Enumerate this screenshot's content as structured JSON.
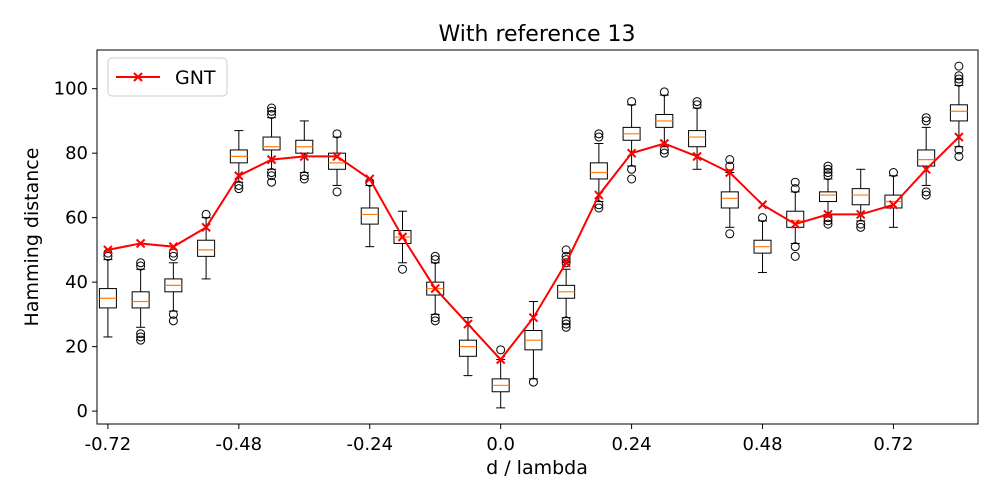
{
  "chart_data": {
    "type": "box",
    "title": "With reference 13",
    "xlabel": "d / lambda",
    "ylabel": "Hamming distance",
    "xlim": [
      -0.74,
      0.875
    ],
    "ylim": [
      -4,
      112
    ],
    "xticks": [
      -0.72,
      -0.48,
      -0.24,
      0.0,
      0.24,
      0.48,
      0.72
    ],
    "xtick_labels": [
      "-0.72",
      "-0.48",
      "-0.24",
      "0.0",
      "0.24",
      "0.48",
      "0.72"
    ],
    "yticks": [
      0,
      20,
      40,
      60,
      80,
      100
    ],
    "ytick_labels": [
      "0",
      "20",
      "40",
      "60",
      "80",
      "100"
    ],
    "legend_position": "top-left",
    "colors": {
      "gnt_line": "#ff0000",
      "median": "#ff7f0e",
      "box": "#000000"
    },
    "series": [
      {
        "name": "GNT",
        "x": [
          -0.72,
          -0.66,
          -0.6,
          -0.54,
          -0.48,
          -0.42,
          -0.36,
          -0.3,
          -0.24,
          -0.18,
          -0.12,
          -0.06,
          0.0,
          0.06,
          0.12,
          0.18,
          0.24,
          0.3,
          0.36,
          0.42,
          0.48,
          0.54,
          0.6,
          0.66,
          0.72,
          0.78,
          0.84
        ],
        "values": [
          50,
          52,
          51,
          57,
          73,
          78,
          79,
          79,
          72,
          54,
          38,
          27,
          16,
          29,
          46,
          67,
          80,
          83,
          79,
          74,
          64,
          58,
          61,
          61,
          64,
          75,
          85
        ]
      }
    ],
    "boxes": [
      {
        "x": -0.72,
        "min": 23,
        "q1": 32,
        "median": 35,
        "q3": 38,
        "max": 47,
        "outliers": [
          48,
          49
        ]
      },
      {
        "x": -0.66,
        "min": 26,
        "q1": 32,
        "median": 34,
        "q3": 37,
        "max": 44,
        "outliers": [
          22,
          23,
          24,
          45,
          46
        ]
      },
      {
        "x": -0.6,
        "min": 31,
        "q1": 37,
        "median": 39,
        "q3": 41,
        "max": 46,
        "outliers": [
          28,
          30,
          48,
          49
        ]
      },
      {
        "x": -0.54,
        "min": 41,
        "q1": 48,
        "median": 50,
        "q3": 53,
        "max": 60,
        "outliers": [
          61
        ]
      },
      {
        "x": -0.48,
        "min": 71,
        "q1": 77,
        "median": 79,
        "q3": 81,
        "max": 87,
        "outliers": [
          69,
          70
        ]
      },
      {
        "x": -0.42,
        "min": 75,
        "q1": 81,
        "median": 82,
        "q3": 85,
        "max": 91,
        "outliers": [
          71,
          73,
          74,
          92,
          93,
          94
        ]
      },
      {
        "x": -0.36,
        "min": 74,
        "q1": 80,
        "median": 82,
        "q3": 84,
        "max": 90,
        "outliers": [
          72,
          73
        ]
      },
      {
        "x": -0.3,
        "min": 70,
        "q1": 75,
        "median": 77,
        "q3": 80,
        "max": 85,
        "outliers": [
          68,
          86
        ]
      },
      {
        "x": -0.24,
        "min": 51,
        "q1": 58,
        "median": 61,
        "q3": 63,
        "max": 70,
        "outliers": [
          71
        ]
      },
      {
        "x": -0.18,
        "min": 46,
        "q1": 52,
        "median": 54,
        "q3": 56,
        "max": 62,
        "outliers": [
          44
        ]
      },
      {
        "x": -0.12,
        "min": 30,
        "q1": 36,
        "median": 38,
        "q3": 40,
        "max": 46,
        "outliers": [
          28,
          29,
          47,
          48
        ]
      },
      {
        "x": -0.06,
        "min": 11,
        "q1": 17,
        "median": 20,
        "q3": 22,
        "max": 29,
        "outliers": []
      },
      {
        "x": 0.0,
        "min": 1,
        "q1": 6,
        "median": 8,
        "q3": 10,
        "max": 16,
        "outliers": [
          19
        ]
      },
      {
        "x": 0.06,
        "min": 10,
        "q1": 19,
        "median": 22,
        "q3": 25,
        "max": 34,
        "outliers": [
          9
        ]
      },
      {
        "x": 0.12,
        "min": 29,
        "q1": 35,
        "median": 37,
        "q3": 39,
        "max": 44,
        "outliers": [
          26,
          27,
          28,
          46,
          47,
          48,
          50
        ]
      },
      {
        "x": 0.18,
        "min": 65,
        "q1": 72,
        "median": 74,
        "q3": 77,
        "max": 83,
        "outliers": [
          63,
          64,
          85,
          86
        ]
      },
      {
        "x": 0.24,
        "min": 76,
        "q1": 84,
        "median": 86,
        "q3": 88,
        "max": 95,
        "outliers": [
          72,
          75,
          96
        ]
      },
      {
        "x": 0.3,
        "min": 82,
        "q1": 88,
        "median": 90,
        "q3": 92,
        "max": 98,
        "outliers": [
          80,
          81,
          99
        ]
      },
      {
        "x": 0.36,
        "min": 75,
        "q1": 82,
        "median": 85,
        "q3": 87,
        "max": 94,
        "outliers": [
          95,
          96
        ]
      },
      {
        "x": 0.42,
        "min": 57,
        "q1": 63,
        "median": 66,
        "q3": 68,
        "max": 74,
        "outliers": [
          55,
          76,
          78
        ]
      },
      {
        "x": 0.48,
        "min": 43,
        "q1": 49,
        "median": 51,
        "q3": 53,
        "max": 59,
        "outliers": [
          60
        ]
      },
      {
        "x": 0.54,
        "min": 52,
        "q1": 57,
        "median": 59,
        "q3": 62,
        "max": 68,
        "outliers": [
          48,
          51,
          69,
          71
        ]
      },
      {
        "x": 0.6,
        "min": 61,
        "q1": 65,
        "median": 67,
        "q3": 68,
        "max": 72,
        "outliers": [
          58,
          59,
          60,
          73,
          74,
          75,
          76
        ]
      },
      {
        "x": 0.66,
        "min": 59,
        "q1": 64,
        "median": 67,
        "q3": 69,
        "max": 75,
        "outliers": [
          57,
          58
        ]
      },
      {
        "x": 0.72,
        "min": 57,
        "q1": 63,
        "median": 65,
        "q3": 67,
        "max": 73,
        "outliers": [
          74
        ]
      },
      {
        "x": 0.78,
        "min": 70,
        "q1": 76,
        "median": 78,
        "q3": 81,
        "max": 88,
        "outliers": [
          67,
          68,
          90,
          91
        ]
      },
      {
        "x": 0.84,
        "min": 82,
        "q1": 90,
        "median": 93,
        "q3": 95,
        "max": 101,
        "outliers": [
          79,
          81,
          102,
          103,
          104,
          107
        ]
      }
    ]
  }
}
